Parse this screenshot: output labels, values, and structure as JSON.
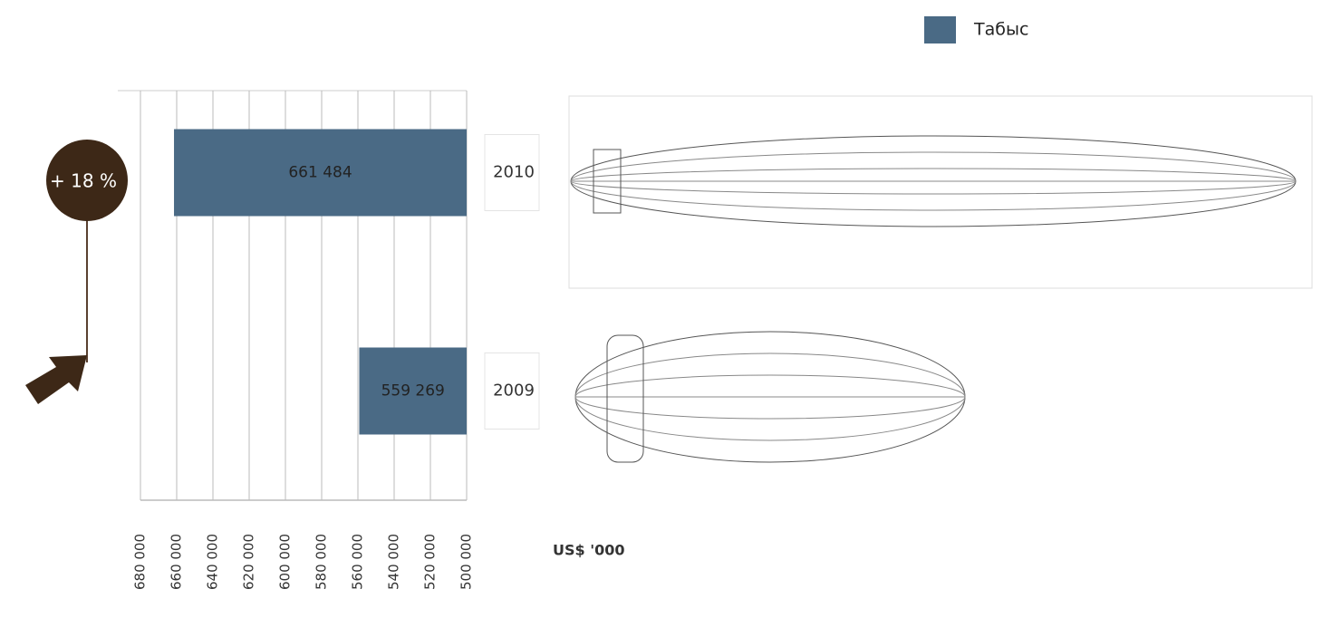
{
  "chart_data": {
    "type": "bar",
    "orientation": "horizontal",
    "categories": [
      "2010",
      "2009"
    ],
    "series": [
      {
        "name": "Табыс",
        "color": "#4a6a85",
        "values": [
          661484,
          559269
        ],
        "value_labels": [
          "661 484",
          "559 269"
        ]
      }
    ],
    "xlim": [
      680000,
      500000
    ],
    "xticks": [
      {
        "value": 680000,
        "label": "680 000"
      },
      {
        "value": 660000,
        "label": "660 000"
      },
      {
        "value": 640000,
        "label": "640 000"
      },
      {
        "value": 620000,
        "label": "620 000"
      },
      {
        "value": 600000,
        "label": "600 000"
      },
      {
        "value": 580000,
        "label": "580 000"
      },
      {
        "value": 560000,
        "label": "560 000"
      },
      {
        "value": 540000,
        "label": "540 000"
      },
      {
        "value": 520000,
        "label": "520 000"
      },
      {
        "value": 500000,
        "label": "500 000"
      }
    ],
    "x_label": "US$ '000",
    "grid": true,
    "legend": "top-right",
    "annotation": "+ 18 %",
    "annotation_color": "#3d2817"
  }
}
